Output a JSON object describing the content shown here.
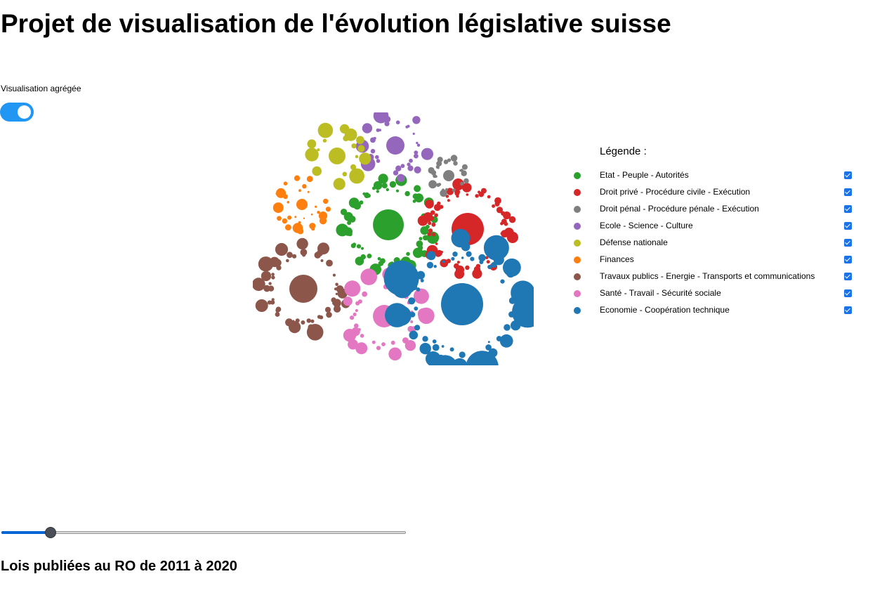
{
  "page": {
    "title": "Projet de visualisation de l'évolution législative suisse",
    "toggle_label": "Visualisation agrégée",
    "toggle_on": true,
    "subtitle": "Lois publiées au RO de 2011 à 2020"
  },
  "legend": {
    "title": "Légende :",
    "items": [
      {
        "label": "Etat - Peuple - Autorités",
        "color": "#2ca02c",
        "checked": true
      },
      {
        "label": "Droit privé - Procédure civile - Exécution",
        "color": "#d62728",
        "checked": true
      },
      {
        "label": "Droit pénal - Procédure pénale - Exécution",
        "color": "#7f7f7f",
        "checked": true
      },
      {
        "label": "Ecole - Science - Culture",
        "color": "#9467bd",
        "checked": true
      },
      {
        "label": "Défense nationale",
        "color": "#bcbd22",
        "checked": true
      },
      {
        "label": "Finances",
        "color": "#ff7f0e",
        "checked": true
      },
      {
        "label": "Travaux publics - Energie - Transports et communications",
        "color": "#8c564b",
        "checked": true
      },
      {
        "label": "Santé - Travail - Sécurité sociale",
        "color": "#e377c2",
        "checked": true
      },
      {
        "label": "Economie - Coopération technique",
        "color": "#1f77b4",
        "checked": true
      }
    ]
  },
  "slider": {
    "value_fraction": 0.11
  },
  "icons": {
    "toggle": "toggle-switch-icon",
    "check": "checkbox-checked-icon"
  }
}
